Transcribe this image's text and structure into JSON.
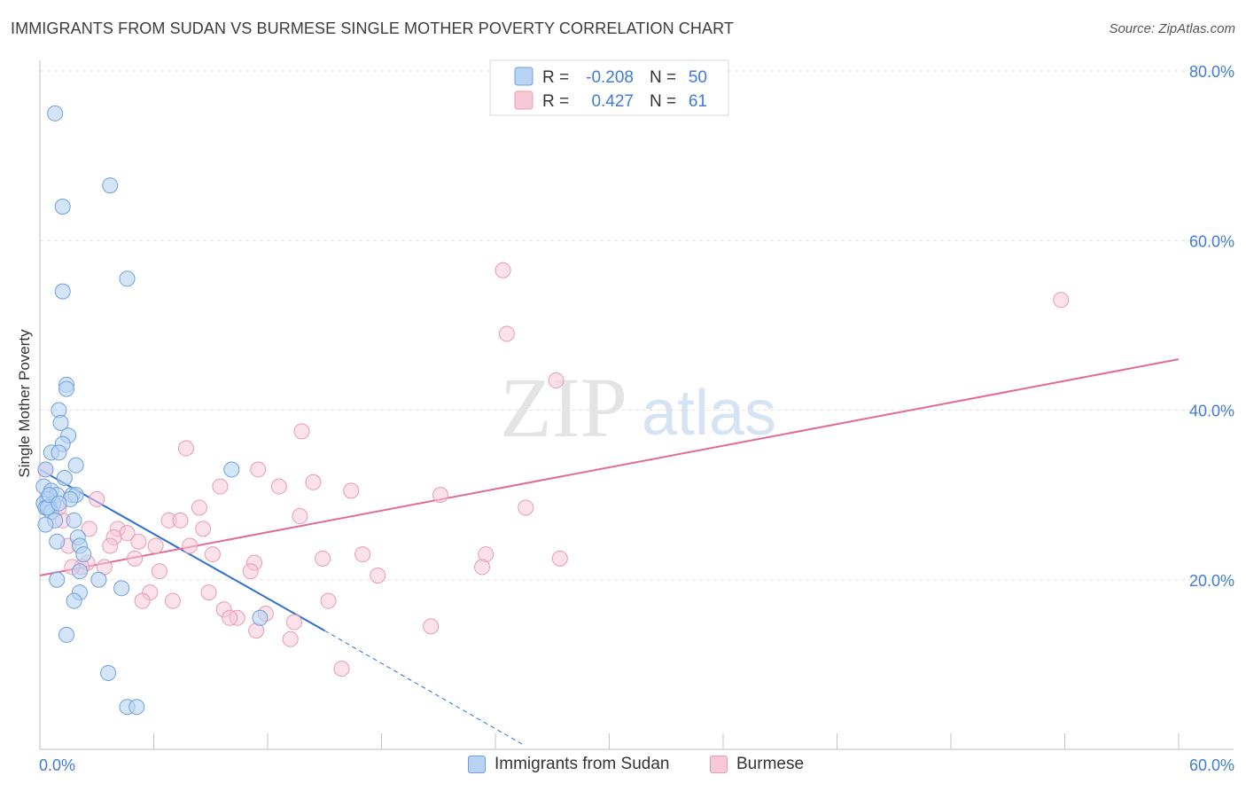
{
  "header": {
    "title": "IMMIGRANTS FROM SUDAN VS BURMESE SINGLE MOTHER POVERTY CORRELATION CHART",
    "source": "Source: ZipAtlas.com"
  },
  "watermark": {
    "zip": "ZIP",
    "atlas": "atlas"
  },
  "colors": {
    "sudan_fill": "#b9d3f3",
    "sudan_stroke": "#6f9fe0",
    "sudan_line": "#2f6fd1",
    "burmese_fill": "#f7c9d7",
    "burmese_stroke": "#e99ab3",
    "burmese_line": "#e26a95",
    "tick_text": "#3f7bd6",
    "grid": "#e3e3e3"
  },
  "legend_top": {
    "rows": [
      {
        "r_label": "R =",
        "r_value": "-0.208",
        "n_label": "N =",
        "n_value": "50"
      },
      {
        "r_label": "R =",
        "r_value": "0.427",
        "n_label": "N =",
        "n_value": "61"
      }
    ]
  },
  "legend_bottom": {
    "items": [
      {
        "label": "Immigrants from Sudan"
      },
      {
        "label": "Burmese"
      }
    ]
  },
  "chart_data": {
    "type": "scatter",
    "title": "IMMIGRANTS FROM SUDAN VS BURMESE SINGLE MOTHER POVERTY CORRELATION CHART",
    "xlabel": "",
    "ylabel": "Single Mother Poverty",
    "xlim": [
      0,
      60
    ],
    "ylim": [
      0,
      80
    ],
    "x_tick_labels": [
      "0.0%",
      "60.0%"
    ],
    "y_ticks": [
      20,
      40,
      60,
      80
    ],
    "y_tick_labels": [
      "20.0%",
      "40.0%",
      "60.0%",
      "80.0%"
    ],
    "grid": true,
    "series": [
      {
        "name": "Immigrants from Sudan",
        "r": -0.208,
        "n": 50,
        "trend": {
          "x_solid": [
            0,
            15
          ],
          "y_solid": [
            33.0,
            14.0
          ],
          "x_dashed": [
            15,
            25.5
          ],
          "y_dashed": [
            14.0,
            0.5
          ]
        },
        "points": [
          [
            0.8,
            75.0
          ],
          [
            1.2,
            64.0
          ],
          [
            1.2,
            54.0
          ],
          [
            3.7,
            66.5
          ],
          [
            4.6,
            55.5
          ],
          [
            1.4,
            43.0
          ],
          [
            1.4,
            42.5
          ],
          [
            1.0,
            40.0
          ],
          [
            1.1,
            38.5
          ],
          [
            1.5,
            37.0
          ],
          [
            1.2,
            36.0
          ],
          [
            0.6,
            35.0
          ],
          [
            1.0,
            35.0
          ],
          [
            1.9,
            33.5
          ],
          [
            10.1,
            33.0
          ],
          [
            0.3,
            33.0
          ],
          [
            1.3,
            32.0
          ],
          [
            0.2,
            31.0
          ],
          [
            0.6,
            30.5
          ],
          [
            0.9,
            30.0
          ],
          [
            1.7,
            30.0
          ],
          [
            1.9,
            30.0
          ],
          [
            0.4,
            29.5
          ],
          [
            0.7,
            29.0
          ],
          [
            1.6,
            29.5
          ],
          [
            0.2,
            29.0
          ],
          [
            0.5,
            28.5
          ],
          [
            0.3,
            28.5
          ],
          [
            0.6,
            28.0
          ],
          [
            0.4,
            28.5
          ],
          [
            0.8,
            27.0
          ],
          [
            1.8,
            27.0
          ],
          [
            0.3,
            26.5
          ],
          [
            2.0,
            25.0
          ],
          [
            0.9,
            24.5
          ],
          [
            2.1,
            24.0
          ],
          [
            2.3,
            23.0
          ],
          [
            2.1,
            21.0
          ],
          [
            0.9,
            20.0
          ],
          [
            3.1,
            20.0
          ],
          [
            4.3,
            19.0
          ],
          [
            2.1,
            18.5
          ],
          [
            1.8,
            17.5
          ],
          [
            11.6,
            15.5
          ],
          [
            1.4,
            13.5
          ],
          [
            3.6,
            9.0
          ],
          [
            4.6,
            5.0
          ],
          [
            5.1,
            5.0
          ],
          [
            0.5,
            30.0
          ],
          [
            1.0,
            29.0
          ]
        ]
      },
      {
        "name": "Burmese",
        "r": 0.427,
        "n": 61,
        "trend": {
          "x": [
            0,
            60
          ],
          "y": [
            20.5,
            46.0
          ]
        },
        "points": [
          [
            0.3,
            33.0
          ],
          [
            24.4,
            56.5
          ],
          [
            24.6,
            49.0
          ],
          [
            27.2,
            43.5
          ],
          [
            53.8,
            53.0
          ],
          [
            7.7,
            35.5
          ],
          [
            13.8,
            37.5
          ],
          [
            11.5,
            33.0
          ],
          [
            9.5,
            31.0
          ],
          [
            12.6,
            31.0
          ],
          [
            14.4,
            31.5
          ],
          [
            16.4,
            30.5
          ],
          [
            21.1,
            30.0
          ],
          [
            3.0,
            29.5
          ],
          [
            8.4,
            28.5
          ],
          [
            25.6,
            28.5
          ],
          [
            13.7,
            27.5
          ],
          [
            6.8,
            27.0
          ],
          [
            7.4,
            27.0
          ],
          [
            1.2,
            27.0
          ],
          [
            8.6,
            26.0
          ],
          [
            4.1,
            26.0
          ],
          [
            4.6,
            25.5
          ],
          [
            3.9,
            25.0
          ],
          [
            5.2,
            24.5
          ],
          [
            1.5,
            24.0
          ],
          [
            6.1,
            24.0
          ],
          [
            3.7,
            24.0
          ],
          [
            7.9,
            24.0
          ],
          [
            9.1,
            23.0
          ],
          [
            23.5,
            23.0
          ],
          [
            14.9,
            22.5
          ],
          [
            17.0,
            23.0
          ],
          [
            27.4,
            22.5
          ],
          [
            5.0,
            22.5
          ],
          [
            11.3,
            22.0
          ],
          [
            2.5,
            22.0
          ],
          [
            2.2,
            21.5
          ],
          [
            1.7,
            21.5
          ],
          [
            3.4,
            21.5
          ],
          [
            23.3,
            21.5
          ],
          [
            6.3,
            21.0
          ],
          [
            11.1,
            21.0
          ],
          [
            17.8,
            20.5
          ],
          [
            8.9,
            18.5
          ],
          [
            5.8,
            18.5
          ],
          [
            7.0,
            17.5
          ],
          [
            5.4,
            17.5
          ],
          [
            15.2,
            17.5
          ],
          [
            9.7,
            16.5
          ],
          [
            11.9,
            16.0
          ],
          [
            10.4,
            15.5
          ],
          [
            10.0,
            15.5
          ],
          [
            13.4,
            15.0
          ],
          [
            11.4,
            14.0
          ],
          [
            20.6,
            14.5
          ],
          [
            13.2,
            13.0
          ],
          [
            15.9,
            9.5
          ],
          [
            0.5,
            30.0
          ],
          [
            1.0,
            28.5
          ],
          [
            2.6,
            26.0
          ]
        ]
      }
    ]
  }
}
